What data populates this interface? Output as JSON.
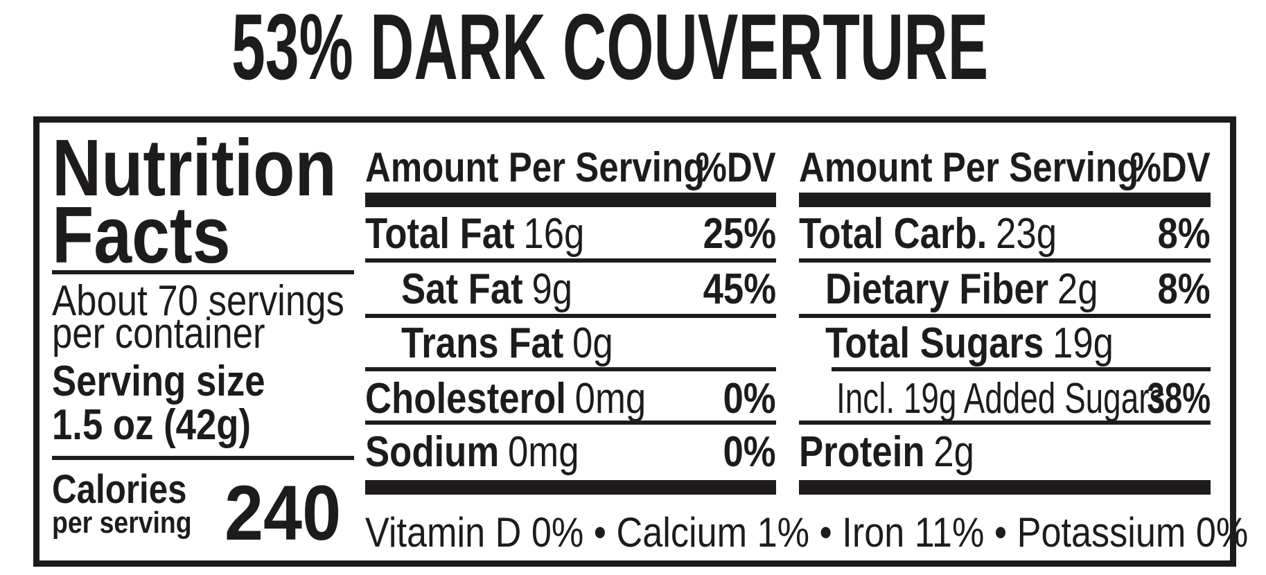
{
  "title": "53% DARK COUVERTURE",
  "colors": {
    "ink": "#1e1b1c",
    "background": "#ffffff"
  },
  "panel": {
    "heading_line1": "Nutrition",
    "heading_line2": "Facts",
    "servings_line1": "About 70 servings",
    "servings_line2": "per container",
    "serving_size_label": "Serving size",
    "serving_size_value": "1.5 oz (42g)",
    "calories_label": "Calories",
    "calories_sublabel": "per serving",
    "calories_value": "240"
  },
  "columns": [
    {
      "header": {
        "amount": "Amount Per Serving",
        "dv": "%DV"
      },
      "rows": [
        {
          "name": "Total Fat",
          "amount": "16g",
          "dv": "25%"
        },
        {
          "name": "Sat Fat",
          "amount": "9g",
          "dv": "45%"
        },
        {
          "name": "Trans Fat",
          "amount": "0g",
          "dv": ""
        },
        {
          "name": "Cholesterol",
          "amount": "0mg",
          "dv": "0%"
        },
        {
          "name": "Sodium",
          "amount": "0mg",
          "dv": "0%"
        }
      ]
    },
    {
      "header": {
        "amount": "Amount Per Serving",
        "dv": "%DV"
      },
      "rows": [
        {
          "name": "Total Carb.",
          "amount": "23g",
          "dv": "8%"
        },
        {
          "name": "Dietary Fiber",
          "amount": "2g",
          "dv": "8%"
        },
        {
          "name": "Total Sugars",
          "amount": "19g",
          "dv": ""
        },
        {
          "name": "Incl. 19g Added Sugars",
          "amount": "",
          "dv": "38%"
        },
        {
          "name": "Protein",
          "amount": "2g",
          "dv": ""
        }
      ]
    }
  ],
  "micronutrients": "Vitamin D 0% • Calcium 1% • Iron 11% • Potassium 0%"
}
